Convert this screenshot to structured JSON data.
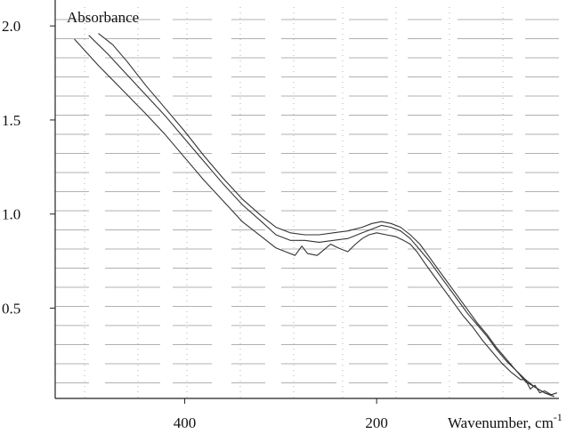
{
  "chart_data": {
    "type": "line",
    "title": "",
    "xlabel": "Wavenumber, cm-1",
    "ylabel": "Absorbance",
    "xlim": [
      535,
      10
    ],
    "ylim": [
      0.02,
      2.1
    ],
    "x_reversed": true,
    "grid": true,
    "xticks": [
      {
        "value": 400,
        "label": "400"
      },
      {
        "value": 200,
        "label": "200"
      }
    ],
    "yticks": [
      {
        "value": 2.0,
        "label": "2.0"
      },
      {
        "value": 1.5,
        "label": "1.5"
      },
      {
        "value": 1.0,
        "label": "1.0"
      },
      {
        "value": 0.5,
        "label": "0.5"
      }
    ],
    "series": [
      {
        "values": [
          [
            515,
            1.93
          ],
          [
            490,
            1.79
          ],
          [
            465,
            1.66
          ],
          [
            440,
            1.53
          ],
          [
            420,
            1.42
          ],
          [
            400,
            1.3
          ],
          [
            380,
            1.18
          ],
          [
            360,
            1.07
          ],
          [
            340,
            0.96
          ],
          [
            320,
            0.88
          ],
          [
            305,
            0.82
          ],
          [
            295,
            0.8
          ],
          [
            285,
            0.78
          ],
          [
            278,
            0.83
          ],
          [
            272,
            0.79
          ],
          [
            262,
            0.78
          ],
          [
            255,
            0.81
          ],
          [
            248,
            0.84
          ],
          [
            240,
            0.82
          ],
          [
            230,
            0.8
          ],
          [
            222,
            0.84
          ],
          [
            215,
            0.87
          ],
          [
            208,
            0.89
          ],
          [
            200,
            0.9
          ],
          [
            190,
            0.89
          ],
          [
            180,
            0.88
          ],
          [
            172,
            0.86
          ],
          [
            165,
            0.84
          ],
          [
            158,
            0.8
          ],
          [
            150,
            0.74
          ],
          [
            140,
            0.67
          ],
          [
            130,
            0.6
          ],
          [
            120,
            0.53
          ],
          [
            110,
            0.46
          ],
          [
            100,
            0.4
          ],
          [
            90,
            0.33
          ],
          [
            80,
            0.27
          ],
          [
            70,
            0.21
          ],
          [
            60,
            0.16
          ],
          [
            50,
            0.12
          ],
          [
            45,
            0.12
          ],
          [
            40,
            0.07
          ],
          [
            35,
            0.09
          ],
          [
            30,
            0.05
          ],
          [
            25,
            0.06
          ],
          [
            18,
            0.04
          ],
          [
            12,
            0.05
          ]
        ]
      },
      {
        "values": [
          [
            500,
            1.95
          ],
          [
            480,
            1.85
          ],
          [
            460,
            1.74
          ],
          [
            440,
            1.63
          ],
          [
            420,
            1.52
          ],
          [
            400,
            1.4
          ],
          [
            380,
            1.28
          ],
          [
            360,
            1.16
          ],
          [
            340,
            1.05
          ],
          [
            320,
            0.96
          ],
          [
            305,
            0.89
          ],
          [
            290,
            0.86
          ],
          [
            275,
            0.86
          ],
          [
            260,
            0.85
          ],
          [
            245,
            0.86
          ],
          [
            230,
            0.87
          ],
          [
            215,
            0.9
          ],
          [
            205,
            0.92
          ],
          [
            195,
            0.94
          ],
          [
            185,
            0.93
          ],
          [
            175,
            0.91
          ],
          [
            165,
            0.87
          ],
          [
            155,
            0.81
          ],
          [
            145,
            0.75
          ],
          [
            135,
            0.68
          ],
          [
            125,
            0.61
          ],
          [
            115,
            0.54
          ],
          [
            105,
            0.47
          ],
          [
            95,
            0.41
          ],
          [
            85,
            0.35
          ],
          [
            75,
            0.28
          ],
          [
            65,
            0.22
          ],
          [
            55,
            0.17
          ],
          [
            45,
            0.11
          ],
          [
            35,
            0.08
          ],
          [
            25,
            0.05
          ],
          [
            15,
            0.03
          ]
        ]
      },
      {
        "values": [
          [
            490,
            1.96
          ],
          [
            475,
            1.9
          ],
          [
            460,
            1.81
          ],
          [
            440,
            1.68
          ],
          [
            420,
            1.56
          ],
          [
            400,
            1.44
          ],
          [
            380,
            1.31
          ],
          [
            360,
            1.19
          ],
          [
            340,
            1.08
          ],
          [
            320,
            0.99
          ],
          [
            305,
            0.93
          ],
          [
            290,
            0.9
          ],
          [
            275,
            0.89
          ],
          [
            260,
            0.89
          ],
          [
            245,
            0.9
          ],
          [
            230,
            0.91
          ],
          [
            215,
            0.93
          ],
          [
            205,
            0.95
          ],
          [
            195,
            0.96
          ],
          [
            185,
            0.95
          ],
          [
            175,
            0.93
          ],
          [
            165,
            0.89
          ],
          [
            155,
            0.84
          ],
          [
            145,
            0.77
          ],
          [
            135,
            0.7
          ],
          [
            125,
            0.63
          ],
          [
            115,
            0.56
          ],
          [
            105,
            0.49
          ],
          [
            95,
            0.42
          ],
          [
            85,
            0.36
          ],
          [
            75,
            0.29
          ],
          [
            65,
            0.23
          ],
          [
            55,
            0.17
          ],
          [
            45,
            0.12
          ],
          [
            35,
            0.08
          ],
          [
            25,
            0.05
          ],
          [
            15,
            0.03
          ]
        ]
      }
    ],
    "colors": {
      "line": "#333333",
      "grid": "#b0b0b0",
      "axis": "#222222"
    }
  }
}
